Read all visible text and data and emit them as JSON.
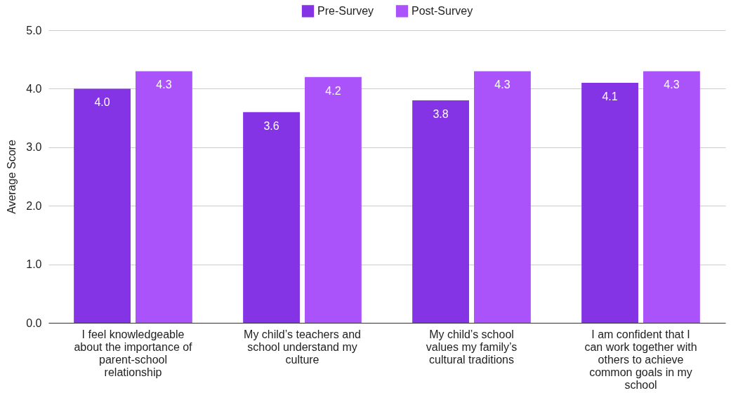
{
  "chart_data": {
    "type": "bar",
    "ylabel": "Average Score",
    "categories": [
      "I feel knowledgeable about the importance of parent-school relationship",
      "My child’s teachers and school understand my culture",
      "My child’s school values my family’s cultural traditions",
      "I am confident that I can work together with others to achieve common goals in my school"
    ],
    "series": [
      {
        "name": "Pre-Survey",
        "color": "#8434e4",
        "values": [
          4.0,
          3.6,
          3.8,
          4.1
        ],
        "value_labels": [
          "4.0",
          "3.6",
          "3.8",
          "4.1"
        ]
      },
      {
        "name": "Post-Survey",
        "color": "#ab53fb",
        "values": [
          4.3,
          4.2,
          4.3,
          4.3
        ],
        "value_labels": [
          "4.3",
          "4.2",
          "4.3",
          "4.3"
        ]
      }
    ],
    "ylim": [
      0,
      5
    ],
    "yticks": [
      {
        "value": 0,
        "label": "0.0"
      },
      {
        "value": 1,
        "label": "1.0"
      },
      {
        "value": 2,
        "label": "2.0"
      },
      {
        "value": 3,
        "label": "3.0"
      },
      {
        "value": 4,
        "label": "4.0"
      },
      {
        "value": 5,
        "label": "5.0"
      }
    ],
    "grid": "y",
    "legend": "top"
  }
}
